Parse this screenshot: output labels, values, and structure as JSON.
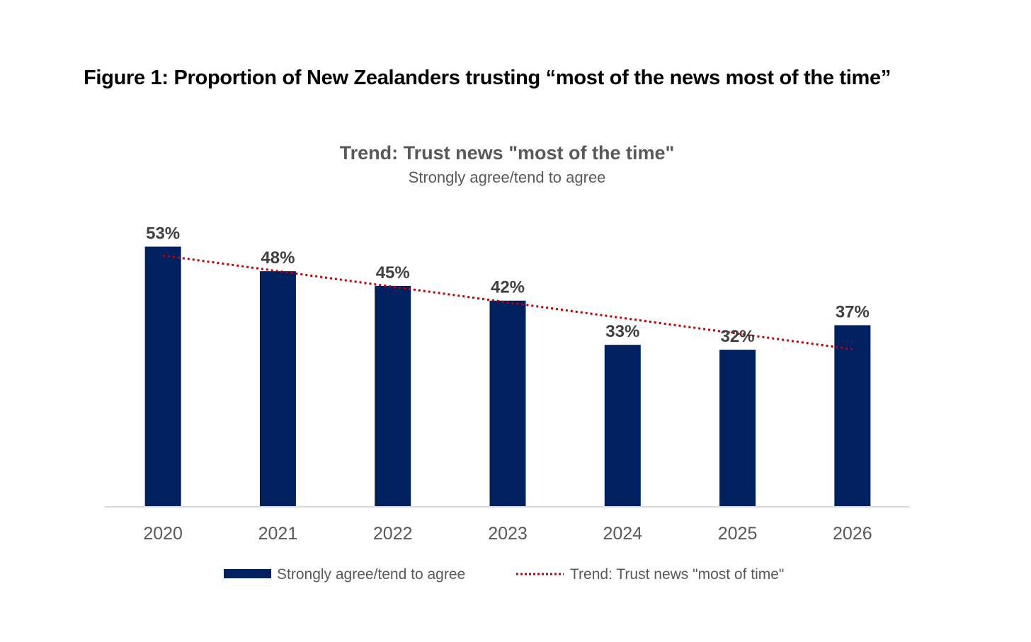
{
  "figure_title": "Figure 1: Proportion of New Zealanders trusting “most of the news most of the time”",
  "colors": {
    "bar": "#002060",
    "trend": "#c00000",
    "axis": "#d9d9d9",
    "text": "#595959"
  },
  "chart_data": {
    "type": "bar",
    "title": "Trend: Trust news \"most of the time\"",
    "subtitle": "Strongly agree/tend to agree",
    "categories": [
      "2020",
      "2021",
      "2022",
      "2023",
      "2024",
      "2025",
      "2026"
    ],
    "series": [
      {
        "name": "Strongly agree/tend to agree",
        "values": [
          53,
          48,
          45,
          42,
          33,
          32,
          37
        ],
        "labels": [
          "53%",
          "48%",
          "45%",
          "42%",
          "33%",
          "32%",
          "37%"
        ]
      }
    ],
    "trendline": {
      "name": "Trend: Trust news \"most of time\"",
      "type": "linear",
      "style": "dotted",
      "start": 51.2,
      "end": 32.1
    },
    "ylim": [
      0,
      53.5
    ],
    "grid": false,
    "yaxis_visible": false,
    "legend_position": "bottom",
    "xlabel": "",
    "ylabel": ""
  }
}
